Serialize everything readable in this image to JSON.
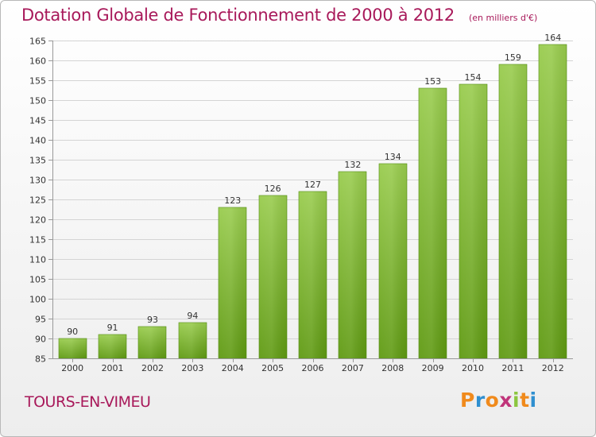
{
  "chart_data": {
    "type": "bar",
    "title": "Dotation Globale de Fonctionnement de 2000 à 2012",
    "subtitle": "(en milliers d'€)",
    "categories": [
      "2000",
      "2001",
      "2002",
      "2003",
      "2004",
      "2005",
      "2006",
      "2007",
      "2008",
      "2009",
      "2010",
      "2011",
      "2012"
    ],
    "values": [
      90,
      91,
      93,
      94,
      123,
      126,
      127,
      132,
      134,
      153,
      154,
      159,
      164
    ],
    "ylim": [
      85,
      165
    ],
    "yticks": [
      85,
      90,
      95,
      100,
      105,
      110,
      115,
      120,
      125,
      130,
      135,
      140,
      145,
      150,
      155,
      160,
      165
    ],
    "xlabel": "",
    "ylabel": "",
    "bar_color_top": "#99cc4e",
    "bar_color_bottom": "#5f9a12",
    "grid": true
  },
  "footer": {
    "city": "TOURS-EN-VIMEU",
    "logo_letters": [
      "P",
      "r",
      "o",
      "x",
      "i",
      "t",
      "i"
    ],
    "logo_colors": [
      "#f08a1c",
      "#2f8fd0",
      "#f08a1c",
      "#c0347a",
      "#8cc63f",
      "#f08a1c",
      "#2f8fd0"
    ]
  },
  "colors": {
    "accent": "#a8195a",
    "grid": "#d4d4d4",
    "axis": "#999999"
  }
}
